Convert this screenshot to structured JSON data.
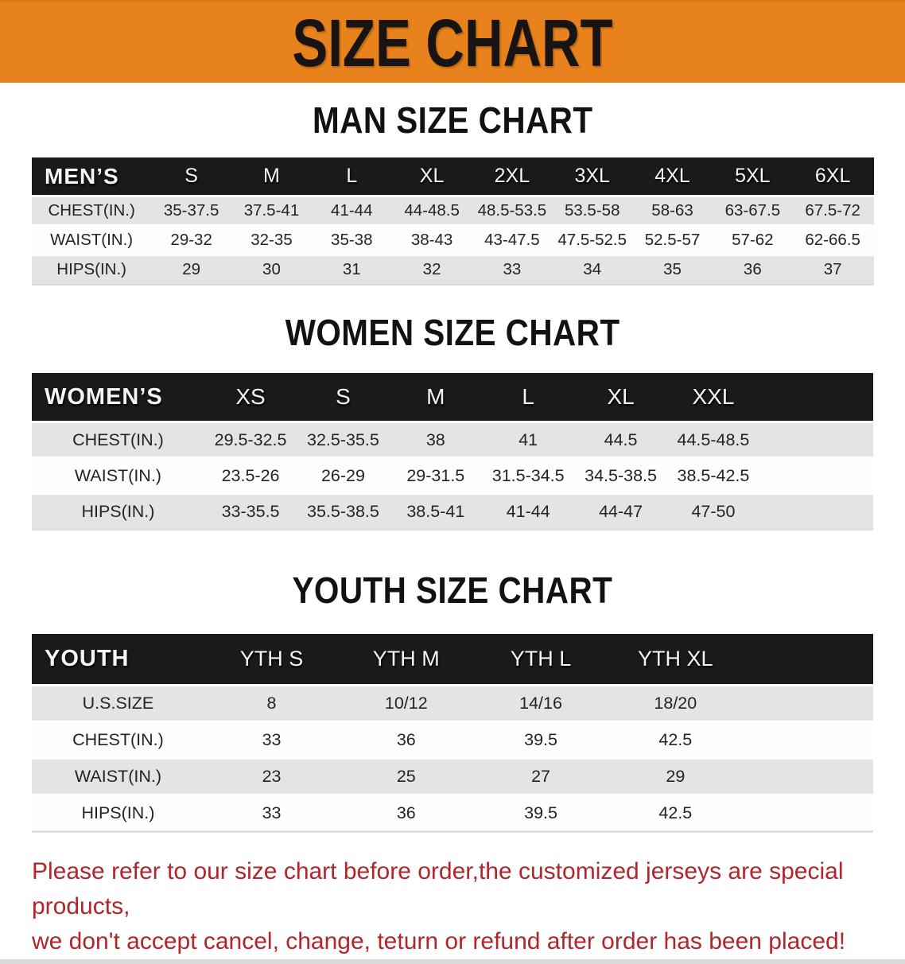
{
  "banner": {
    "title": "SIZE CHART"
  },
  "colors": {
    "banner_bg": "#e8821c",
    "bar_bg": "#1a1a1a",
    "row_gray": "#e4e4e4",
    "disclaimer_red": "#b0262a"
  },
  "sections": [
    {
      "heading": "MAN SIZE CHART",
      "table": {
        "corner": "MEN’S",
        "columns": [
          "S",
          "M",
          "L",
          "XL",
          "2XL",
          "3XL",
          "4XL",
          "5XL",
          "6XL"
        ],
        "rows": [
          {
            "label": "CHEST(IN.)",
            "values": [
              "35-37.5",
              "37.5-41",
              "41-44",
              "44-48.5",
              "48.5-53.5",
              "53.5-58",
              "58-63",
              "63-67.5",
              "67.5-72"
            ]
          },
          {
            "label": "WAIST(IN.)",
            "values": [
              "29-32",
              "32-35",
              "35-38",
              "38-43",
              "43-47.5",
              "47.5-52.5",
              "52.5-57",
              "57-62",
              "62-66.5"
            ]
          },
          {
            "label": "HIPS(IN.)",
            "values": [
              "29",
              "30",
              "31",
              "32",
              "33",
              "34",
              "35",
              "36",
              "37"
            ]
          }
        ]
      }
    },
    {
      "heading": "WOMEN SIZE CHART",
      "table": {
        "corner": "WOMEN’S",
        "columns": [
          "XS",
          "S",
          "M",
          "L",
          "XL",
          "XXL"
        ],
        "rows": [
          {
            "label": "CHEST(IN.)",
            "values": [
              "29.5-32.5",
              "32.5-35.5",
              "38",
              "41",
              "44.5",
              "44.5-48.5"
            ]
          },
          {
            "label": "WAIST(IN.)",
            "values": [
              "23.5-26",
              "26-29",
              "29-31.5",
              "31.5-34.5",
              "34.5-38.5",
              "38.5-42.5"
            ]
          },
          {
            "label": "HIPS(IN.)",
            "values": [
              "33-35.5",
              "35.5-38.5",
              "38.5-41",
              "41-44",
              "44-47",
              "47-50"
            ]
          }
        ]
      }
    },
    {
      "heading": "YOUTH SIZE CHART",
      "table": {
        "corner": "YOUTH",
        "columns": [
          "YTH S",
          "YTH M",
          "YTH L",
          "YTH XL"
        ],
        "rows": [
          {
            "label": "U.S.SIZE",
            "values": [
              "8",
              "10/12",
              "14/16",
              "18/20"
            ]
          },
          {
            "label": "CHEST(IN.)",
            "values": [
              "33",
              "36",
              "39.5",
              "42.5"
            ]
          },
          {
            "label": "WAIST(IN.)",
            "values": [
              "23",
              "25",
              "27",
              "29"
            ]
          },
          {
            "label": "HIPS(IN.)",
            "values": [
              "33",
              "36",
              "39.5",
              "42.5"
            ]
          }
        ]
      }
    }
  ],
  "footer": {
    "lines": [
      "Please refer to our size chart before order,the customized jerseys are special products,",
      "we don't accept cancel, change, teturn or refund after order has been placed!"
    ]
  }
}
